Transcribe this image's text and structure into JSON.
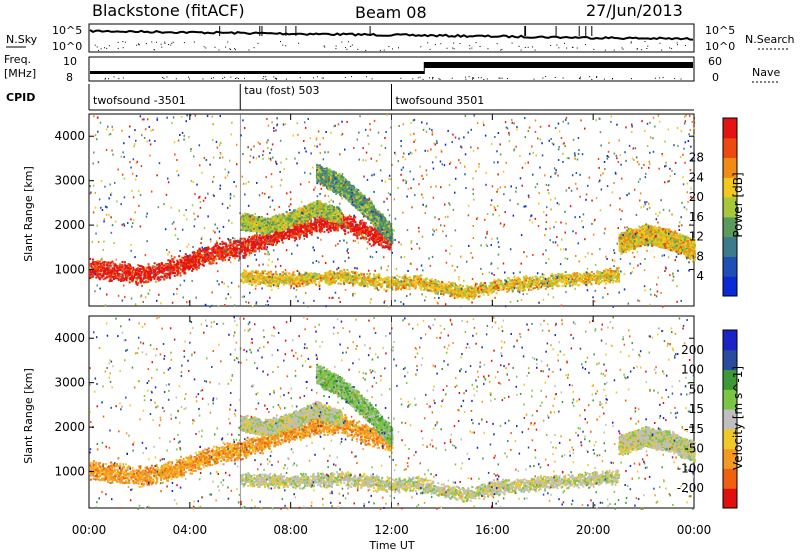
{
  "header": {
    "station": "Blackstone (fitACF)",
    "beam": "Beam 08",
    "date": "27/Jun/2013"
  },
  "left_labels": {
    "nsky": "N.Sky",
    "freq": "Freq.",
    "mhz": "[MHz]",
    "cpid": "CPID"
  },
  "right_labels": {
    "nsearch": "N.Search",
    "nave": "Nave"
  },
  "nsky_axis": {
    "top": "10^5",
    "bottom": "10^0"
  },
  "freq_axis": {
    "top": "10",
    "bottom": "8"
  },
  "nave_axis": {
    "top": "60",
    "bottom": "0"
  },
  "cpid_segments": [
    {
      "label": "twofsound -3501",
      "start_h": 0,
      "end_h": 6
    },
    {
      "label": "tau (fost) 503",
      "start_h": 6,
      "end_h": 12
    },
    {
      "label": "twofsound 3501",
      "start_h": 12,
      "end_h": 24
    }
  ],
  "colors": {
    "power": [
      "#0a2ad8",
      "#1f4fb4",
      "#3d7a8c",
      "#5a9a5a",
      "#a8c83c",
      "#f0c81e",
      "#f08c14",
      "#ee4a10",
      "#e41414"
    ],
    "velocity": [
      "#e11010",
      "#f0600f",
      "#f49a23",
      "#f0c828",
      "#bfbfbf",
      "#7cc444",
      "#3c9a36",
      "#2a4c9c",
      "#1a22c8"
    ]
  },
  "chart_data": [
    {
      "type": "heatmap",
      "name": "power",
      "ylabel": "Slant Range [km]",
      "xlabel": "",
      "ylim": [
        180,
        4500
      ],
      "xlim": [
        0,
        24
      ],
      "yticks": [
        1000,
        2000,
        3000,
        4000
      ],
      "colorbar_label": "Power [dB]",
      "colorbar_ticks": [
        "4",
        "8",
        "12",
        "16",
        "20",
        "24",
        "28"
      ],
      "bands": [
        {
          "x": [
            0,
            1,
            2,
            3,
            4,
            5,
            6,
            7,
            8,
            9,
            10,
            11,
            12
          ],
          "y": [
            1050,
            980,
            900,
            1000,
            1200,
            1400,
            1500,
            1700,
            1900,
            2050,
            2100,
            1850,
            1650
          ],
          "width": 250,
          "level": 8
        },
        {
          "x": [
            6,
            7,
            8,
            9,
            10,
            11,
            12,
            13,
            14,
            15,
            16,
            17,
            18,
            19,
            20,
            21
          ],
          "y": [
            850,
            820,
            800,
            820,
            850,
            800,
            700,
            750,
            600,
            500,
            650,
            700,
            750,
            800,
            850,
            900
          ],
          "width": 180,
          "level": 5
        },
        {
          "x": [
            21,
            22,
            23,
            24
          ],
          "y": [
            1600,
            1800,
            1700,
            1450
          ],
          "width": 250,
          "level": 5
        },
        {
          "x": [
            6,
            7,
            8,
            9,
            10
          ],
          "y": [
            2100,
            2000,
            2150,
            2400,
            2200
          ],
          "width": 200,
          "level": 4
        },
        {
          "x": [
            9,
            10,
            11,
            12
          ],
          "y": [
            3200,
            2900,
            2400,
            1800
          ],
          "width": 250,
          "level": 3
        }
      ]
    },
    {
      "type": "heatmap",
      "name": "velocity",
      "ylabel": "Slant Range [km]",
      "xlabel": "Time UT",
      "ylim": [
        180,
        4500
      ],
      "xlim": [
        0,
        24
      ],
      "yticks": [
        1000,
        2000,
        3000,
        4000
      ],
      "xticks": [
        "00:00",
        "04:00",
        "08:00",
        "12:00",
        "16:00",
        "20:00",
        "00:00"
      ],
      "colorbar_label": "Velocity [m s^-1]",
      "colorbar_ticks": [
        "-200",
        "-100",
        "-50",
        "-15",
        "15",
        "50",
        "100",
        "200"
      ],
      "bands": [
        {
          "x": [
            0,
            1,
            2,
            3,
            4,
            5,
            6,
            7,
            8,
            9,
            10,
            11,
            12
          ],
          "y": [
            1050,
            980,
            900,
            1000,
            1200,
            1400,
            1500,
            1700,
            1900,
            2050,
            2100,
            1850,
            1650
          ],
          "width": 250,
          "level": 2
        },
        {
          "x": [
            6,
            7,
            8,
            9,
            10,
            11,
            12,
            13,
            14,
            15,
            16,
            17,
            18,
            19,
            20,
            21
          ],
          "y": [
            850,
            820,
            800,
            820,
            850,
            800,
            700,
            750,
            600,
            500,
            650,
            700,
            750,
            800,
            850,
            900
          ],
          "width": 180,
          "level": 4
        },
        {
          "x": [
            21,
            22,
            23,
            24
          ],
          "y": [
            1600,
            1800,
            1700,
            1450
          ],
          "width": 250,
          "level": 4
        },
        {
          "x": [
            6,
            7,
            8,
            9,
            10
          ],
          "y": [
            2100,
            2000,
            2150,
            2400,
            2200
          ],
          "width": 200,
          "level": 4
        },
        {
          "x": [
            9,
            10,
            11,
            12
          ],
          "y": [
            3200,
            2900,
            2400,
            1800
          ],
          "width": 250,
          "level": 5
        }
      ]
    }
  ]
}
